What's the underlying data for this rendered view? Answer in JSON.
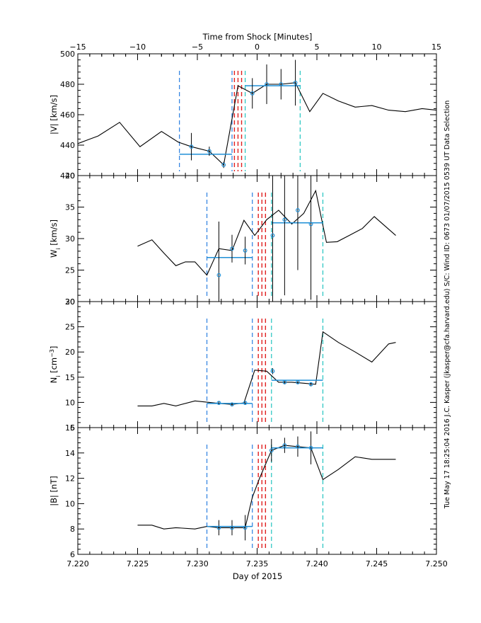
{
  "chart_data": {
    "type": "line",
    "top_axis": {
      "label": "Time from Shock [Minutes]",
      "range": [
        -15,
        15
      ],
      "ticks": [
        -15,
        -10,
        -5,
        0,
        5,
        10,
        15
      ],
      "tick_labels": [
        "−15",
        "−10",
        "−5",
        "0",
        "5",
        "10",
        "15"
      ]
    },
    "x_axis": {
      "label": "Day of 2015",
      "range": [
        7.22,
        7.25
      ],
      "ticks": [
        7.22,
        7.225,
        7.23,
        7.235,
        7.24,
        7.245,
        7.25
      ],
      "tick_labels": [
        "7.220",
        "7.225",
        "7.230",
        "7.235",
        "7.240",
        "7.245",
        "7.250"
      ]
    },
    "side_text": "Tue May 17 18:25:04 2016   J.C. Kasper (jkasper@cfa.harvard.edu)   S/C: Wind ID: 0673 01/07/2015  0539 UT Data Selection",
    "colors": {
      "line": "#000000",
      "fit": "#1f8fd6",
      "upstream_bound": "#2a7fe0",
      "downstream_bound": "#22c4c0",
      "shock": "#e02020"
    },
    "panels": [
      {
        "id": "V",
        "ylabel": "|V| [km/s]",
        "ylim": [
          420,
          500
        ],
        "yticks": [
          420,
          440,
          460,
          480,
          500
        ],
        "series_x": [
          7.22,
          7.2217,
          7.2235,
          7.2252,
          7.227,
          7.2284,
          7.2295,
          7.231,
          7.2322,
          7.2334,
          7.2346,
          7.2358,
          7.237,
          7.2382,
          7.2394,
          7.2405,
          7.2418,
          7.2432,
          7.2446,
          7.246,
          7.2474,
          7.2488,
          7.25
        ],
        "series_y": [
          441,
          446,
          455,
          439,
          449,
          442,
          439,
          436,
          427,
          479,
          474,
          480,
          480,
          481,
          462,
          474,
          469,
          465,
          466,
          463,
          462,
          464,
          463
        ],
        "points": [
          {
            "x": 7.2295,
            "y": 439,
            "err": 9
          },
          {
            "x": 7.231,
            "y": 436,
            "err": 3
          },
          {
            "x": 7.2322,
            "y": 427,
            "err": 2
          },
          {
            "x": 7.2346,
            "y": 474,
            "err": 10
          },
          {
            "x": 7.2358,
            "y": 480,
            "err": 13
          },
          {
            "x": 7.237,
            "y": 480,
            "err": 10
          },
          {
            "x": 7.2382,
            "y": 481,
            "err": 15
          }
        ],
        "fits": [
          {
            "x0": 7.2285,
            "x1": 7.2329,
            "y": 434
          },
          {
            "x0": 7.234,
            "x1": 7.2386,
            "y": 479
          }
        ],
        "upstream_lines": [
          7.2285,
          7.2329
        ],
        "downstream_lines": [
          7.234,
          7.2386
        ],
        "shock_lines": [
          7.2331,
          7.2334,
          7.2337
        ]
      },
      {
        "id": "W",
        "ylabel": "W_i [km/s]",
        "ylim": [
          20,
          40
        ],
        "yticks": [
          20,
          25,
          30,
          35,
          40
        ],
        "series_x": [
          7.225,
          7.2262,
          7.2272,
          7.2282,
          7.229,
          7.2298,
          7.2308,
          7.2318,
          7.2329,
          7.2339,
          7.2348,
          7.2358,
          7.2368,
          7.2379,
          7.2389,
          7.2399,
          7.2408,
          7.2417,
          7.2427,
          7.2438,
          7.2448,
          7.2466
        ],
        "series_y": [
          28.8,
          29.8,
          27.7,
          25.7,
          26.3,
          26.3,
          24.2,
          28.4,
          28.1,
          32.9,
          30.5,
          33.0,
          34.5,
          32.3,
          34.0,
          37.6,
          29.4,
          29.5,
          30.5,
          31.6,
          33.5,
          30.5
        ],
        "points": [
          {
            "x": 7.2318,
            "y": 24.2,
            "err": 8.5
          },
          {
            "x": 7.2329,
            "y": 28.4,
            "err": 2.2
          },
          {
            "x": 7.234,
            "y": 28.1,
            "err": 2.2
          },
          {
            "x": 7.2363,
            "y": 30.5,
            "err": 12
          },
          {
            "x": 7.2373,
            "y": 33.0,
            "err": 12
          },
          {
            "x": 7.2384,
            "y": 34.5,
            "err": 9.5
          },
          {
            "x": 7.2395,
            "y": 32.3,
            "err": 12
          }
        ],
        "fits": [
          {
            "x0": 7.2308,
            "x1": 7.2346,
            "y": 27.0
          },
          {
            "x0": 7.2362,
            "x1": 7.2405,
            "y": 32.5
          }
        ],
        "upstream_lines": [
          7.2308,
          7.2346
        ],
        "downstream_lines": [
          7.2362,
          7.2405
        ],
        "shock_lines": [
          7.2351,
          7.2354,
          7.2357
        ]
      },
      {
        "id": "N",
        "ylabel": "N_i [cm^-3]",
        "ylim": [
          5,
          30
        ],
        "yticks": [
          5,
          10,
          15,
          20,
          25,
          30
        ],
        "series_x": [
          7.225,
          7.2262,
          7.2272,
          7.2282,
          7.2298,
          7.2318,
          7.2329,
          7.2339,
          7.2348,
          7.2358,
          7.2368,
          7.2379,
          7.2389,
          7.2399,
          7.2405,
          7.2418,
          7.2432,
          7.2446,
          7.246,
          7.2466
        ],
        "series_y": [
          9.3,
          9.3,
          9.8,
          9.3,
          10.3,
          9.8,
          9.6,
          9.9,
          16.4,
          16.2,
          14.0,
          14.0,
          13.8,
          13.6,
          24.0,
          21.9,
          20.0,
          18.0,
          21.6,
          21.9
        ],
        "points": [
          {
            "x": 7.2318,
            "y": 9.9,
            "err": 0.3
          },
          {
            "x": 7.2329,
            "y": 9.6,
            "err": 0.3
          },
          {
            "x": 7.234,
            "y": 9.9,
            "err": 0.3
          },
          {
            "x": 7.2363,
            "y": 16.2,
            "err": 0.6
          },
          {
            "x": 7.2373,
            "y": 14.0,
            "err": 0.4
          },
          {
            "x": 7.2384,
            "y": 14.0,
            "err": 0.3
          },
          {
            "x": 7.2395,
            "y": 13.6,
            "err": 0.4
          }
        ],
        "fits": [
          {
            "x0": 7.2308,
            "x1": 7.2346,
            "y": 9.8
          },
          {
            "x0": 7.2362,
            "x1": 7.2405,
            "y": 14.4
          }
        ],
        "upstream_lines": [
          7.2308,
          7.2346
        ],
        "downstream_lines": [
          7.2362,
          7.2405
        ],
        "shock_lines": [
          7.2351,
          7.2354,
          7.2357
        ]
      },
      {
        "id": "B",
        "ylabel": "|B| [nT]",
        "ylim": [
          6,
          16
        ],
        "yticks": [
          6,
          8,
          10,
          12,
          14,
          16
        ],
        "series_x": [
          7.225,
          7.2262,
          7.2272,
          7.2282,
          7.2298,
          7.2308,
          7.2318,
          7.2329,
          7.234,
          7.2346,
          7.2352,
          7.2362,
          7.2373,
          7.2384,
          7.2395,
          7.2405,
          7.2418,
          7.2432,
          7.2446,
          7.246,
          7.2466
        ],
        "series_y": [
          8.3,
          8.3,
          8.0,
          8.1,
          8.0,
          8.2,
          8.1,
          8.1,
          8.1,
          10.5,
          12.0,
          14.2,
          14.6,
          14.5,
          14.4,
          11.9,
          12.7,
          13.7,
          13.5,
          13.5,
          13.5
        ],
        "points": [
          {
            "x": 7.2318,
            "y": 8.1,
            "err": 0.6
          },
          {
            "x": 7.2329,
            "y": 8.1,
            "err": 0.6
          },
          {
            "x": 7.234,
            "y": 8.1,
            "err": 1.0
          },
          {
            "x": 7.2362,
            "y": 14.2,
            "err": 0.9
          },
          {
            "x": 7.2373,
            "y": 14.6,
            "err": 0.6
          },
          {
            "x": 7.2384,
            "y": 14.5,
            "err": 0.8
          },
          {
            "x": 7.2395,
            "y": 14.4,
            "err": 1.3
          }
        ],
        "fits": [
          {
            "x0": 7.2308,
            "x1": 7.2346,
            "y": 8.2
          },
          {
            "x0": 7.2362,
            "x1": 7.2405,
            "y": 14.4
          }
        ],
        "upstream_lines": [
          7.2308,
          7.2346
        ],
        "downstream_lines": [
          7.2362,
          7.2405
        ],
        "shock_lines": [
          7.2351,
          7.2354,
          7.2357
        ]
      }
    ]
  }
}
